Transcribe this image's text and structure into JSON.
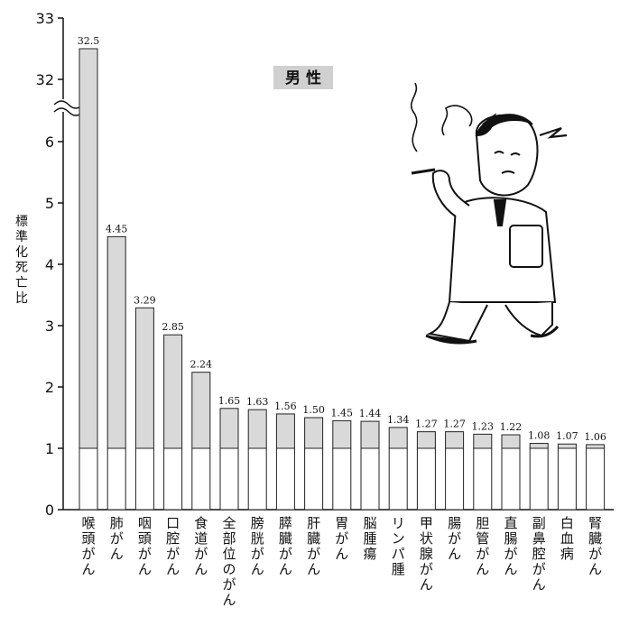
{
  "chart_data": {
    "type": "bar",
    "legend_label": "男 性",
    "ylabel": "標準化死亡比",
    "yticks": [
      "0",
      "1",
      "2",
      "3",
      "4",
      "5",
      "6",
      "32",
      "33"
    ],
    "axis_break": true,
    "baseline": 1,
    "categories": [
      "喉頭がん",
      "肺がん",
      "咽頭がん",
      "口腔がん",
      "食道がん",
      "全部位のがん",
      "膀胱がん",
      "膵臓がん",
      "肝臓がん",
      "胃がん",
      "脳腫瘍",
      "リンパ腫",
      "甲状腺がん",
      "腸がん",
      "胆管がん",
      "直腸がん",
      "副鼻腔がん",
      "白血病",
      "腎臓がん"
    ],
    "values": [
      32.5,
      4.45,
      3.29,
      2.85,
      2.24,
      1.65,
      1.63,
      1.56,
      1.5,
      1.45,
      1.44,
      1.34,
      1.27,
      1.27,
      1.23,
      1.22,
      1.08,
      1.07,
      1.06
    ],
    "value_labels": [
      "32.5",
      "4.45",
      "3.29",
      "2.85",
      "2.24",
      "1.65",
      "1.63",
      "1.56",
      "1.50",
      "1.45",
      "1.44",
      "1.34",
      "1.27",
      "1.27",
      "1.23",
      "1.22",
      "1.08",
      "1.07",
      "1.06"
    ],
    "colors": {
      "excess": "#d9d9d9",
      "baseline": "#ffffff",
      "stroke": "#222222"
    }
  }
}
